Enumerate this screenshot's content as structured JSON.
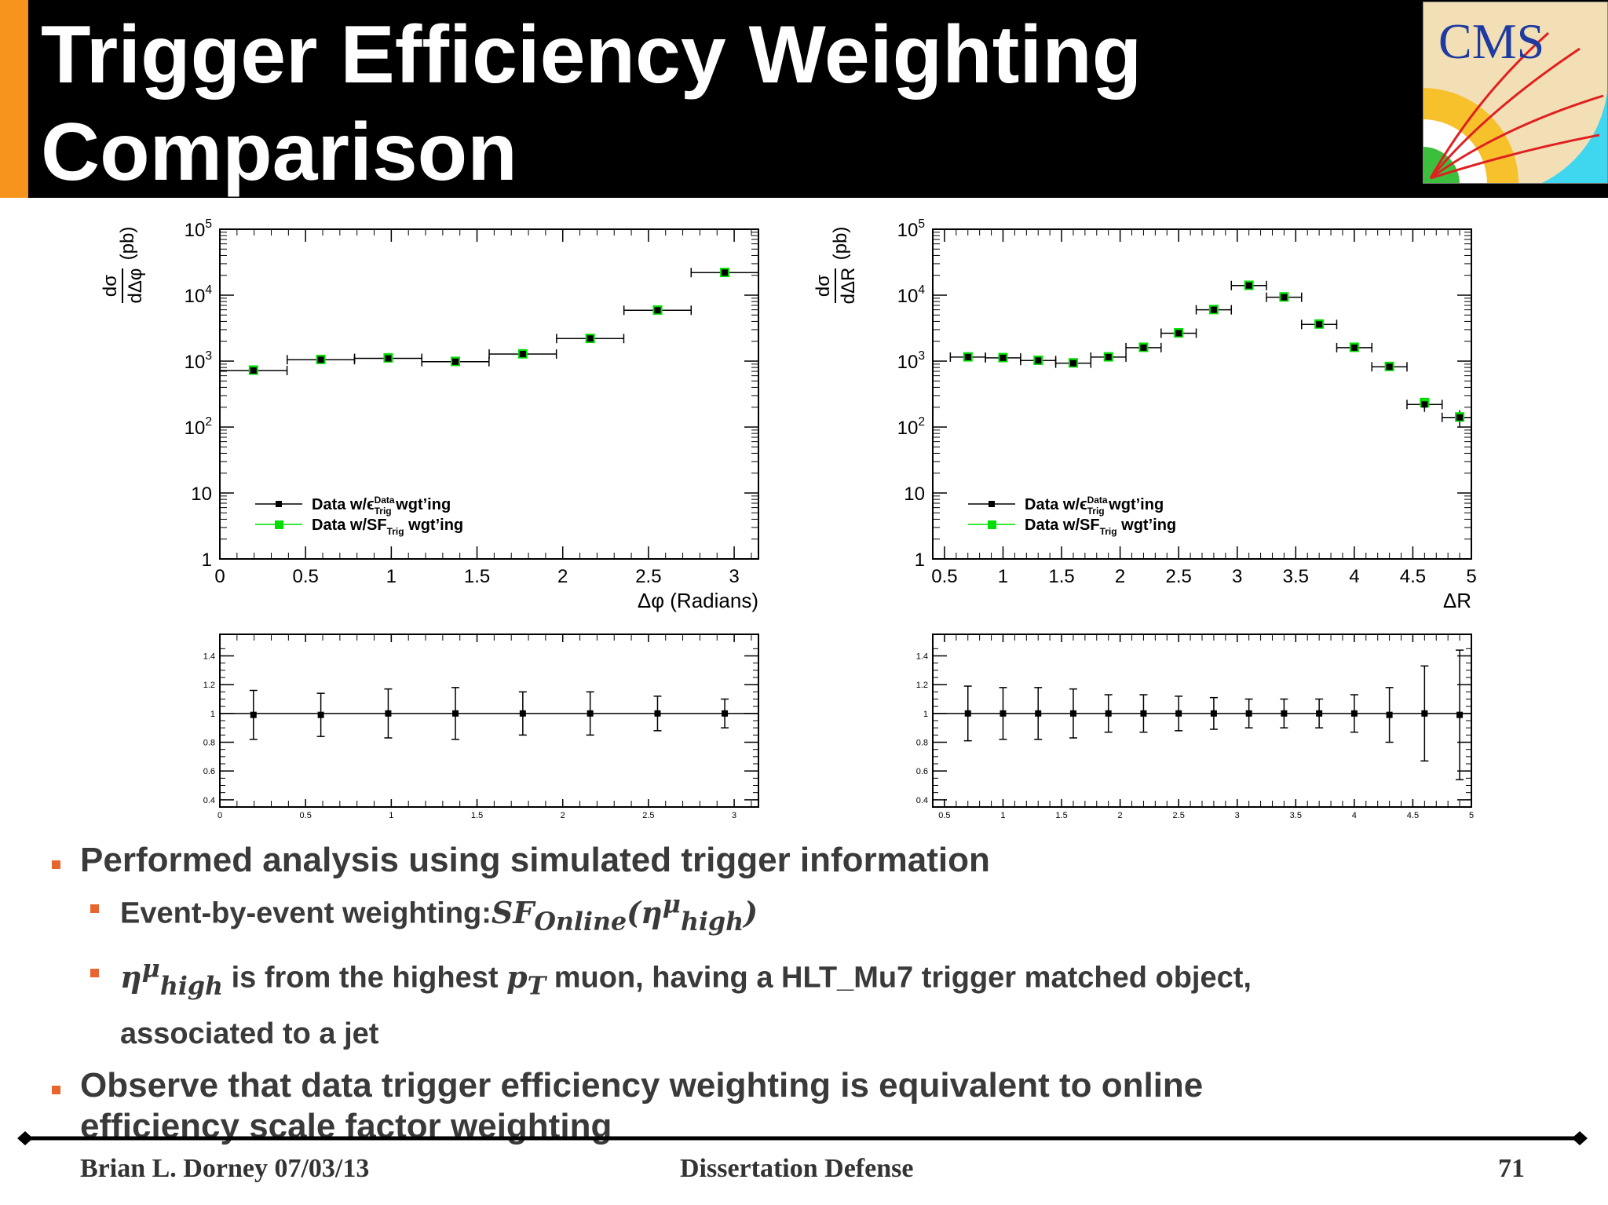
{
  "slide": {
    "title_line1": "Trigger Efficiency Weighting",
    "title_line2": "Comparison",
    "logo_text": "CMS",
    "colors": {
      "header_bg": "#000000",
      "accent": "#f7941d",
      "bullet": "#e8652f",
      "data_black": "#000000",
      "sf_green": "#00dd00"
    }
  },
  "chart_data": [
    {
      "type": "scatter",
      "id": "dphi-xsec",
      "xlabel": "Δφ (Radians)",
      "ylabel_num": "dσ",
      "ylabel_den": "dΔφ",
      "ylabel_unit": "(pb)",
      "y_scale": "log",
      "xlim": [
        0,
        3.14159
      ],
      "ylim": [
        1,
        100000
      ],
      "x_ticks": [
        "0",
        "0.5",
        "1",
        "1.5",
        "2",
        "2.5",
        "3"
      ],
      "y_ticks": [
        "1",
        "10",
        "10^2",
        "10^3",
        "10^4",
        "10^5"
      ],
      "legend_position": "lower-left",
      "series": [
        {
          "name": "Data w/ε_Trig^Data wgt'ing",
          "color": "#000000",
          "x": [
            0.196,
            0.589,
            0.982,
            1.374,
            1.767,
            2.16,
            2.553,
            2.945
          ],
          "x_err": [
            0.196,
            0.196,
            0.196,
            0.196,
            0.196,
            0.196,
            0.196,
            0.196
          ],
          "y": [
            720,
            1050,
            1100,
            980,
            1280,
            2200,
            5900,
            22000
          ]
        },
        {
          "name": "Data w/SF_Trig wgt'ing",
          "color": "#00dd00",
          "x": [
            0.196,
            0.589,
            0.982,
            1.374,
            1.767,
            2.16,
            2.553,
            2.945
          ],
          "y": [
            730,
            1060,
            1120,
            990,
            1290,
            2210,
            5950,
            22100
          ]
        }
      ]
    },
    {
      "type": "scatter",
      "id": "dphi-ratio",
      "y_scale": "linear",
      "xlim": [
        0,
        3.14159
      ],
      "ylim": [
        0.35,
        1.55
      ],
      "x_ticks": [
        "0",
        "0.5",
        "1",
        "1.5",
        "2",
        "2.5",
        "3"
      ],
      "y_ticks": [
        "0.4",
        "0.6",
        "0.8",
        "1",
        "1.2",
        "1.4"
      ],
      "x": [
        0.196,
        0.589,
        0.982,
        1.374,
        1.767,
        2.16,
        2.553,
        2.945
      ],
      "y": [
        0.99,
        0.99,
        1.0,
        1.0,
        1.0,
        1.0,
        1.0,
        1.0
      ],
      "y_err": [
        0.17,
        0.15,
        0.17,
        0.18,
        0.15,
        0.15,
        0.12,
        0.1
      ],
      "reference_line": 1
    },
    {
      "type": "scatter",
      "id": "dr-xsec",
      "xlabel": "ΔR",
      "ylabel_num": "dσ",
      "ylabel_den": "dΔR",
      "ylabel_unit": "(pb)",
      "y_scale": "log",
      "xlim": [
        0.4,
        5
      ],
      "ylim": [
        1,
        100000
      ],
      "x_ticks": [
        "0.5",
        "1",
        "1.5",
        "2",
        "2.5",
        "3",
        "3.5",
        "4",
        "4.5",
        "5"
      ],
      "y_ticks": [
        "1",
        "10",
        "10^2",
        "10^3",
        "10^4",
        "10^5"
      ],
      "legend_position": "lower-left",
      "series": [
        {
          "name": "Data w/ε_Trig^Data wgt'ing",
          "color": "#000000",
          "x": [
            0.7,
            1.0,
            1.3,
            1.6,
            1.9,
            2.2,
            2.5,
            2.8,
            3.1,
            3.4,
            3.7,
            4.0,
            4.3,
            4.6,
            4.9
          ],
          "x_err": [
            0.15,
            0.15,
            0.15,
            0.15,
            0.15,
            0.15,
            0.15,
            0.15,
            0.15,
            0.15,
            0.15,
            0.15,
            0.15,
            0.15,
            0.15
          ],
          "y": [
            1150,
            1120,
            1020,
            930,
            1150,
            1600,
            2650,
            6000,
            14000,
            9300,
            3600,
            1600,
            820,
            220,
            140
          ],
          "y_err": [
            0,
            0,
            0,
            0,
            0,
            0,
            0,
            0,
            0,
            0,
            0,
            0,
            0,
            50,
            40
          ]
        },
        {
          "name": "Data w/SF_Trig wgt'ing",
          "color": "#00dd00",
          "x": [
            0.7,
            1.0,
            1.3,
            1.6,
            1.9,
            2.2,
            2.5,
            2.8,
            3.1,
            3.4,
            3.7,
            4.0,
            4.3,
            4.6,
            4.9
          ],
          "y": [
            1160,
            1130,
            1030,
            940,
            1160,
            1620,
            2680,
            6050,
            14100,
            9400,
            3650,
            1620,
            830,
            235,
            142
          ]
        }
      ]
    },
    {
      "type": "scatter",
      "id": "dr-ratio",
      "y_scale": "linear",
      "xlim": [
        0.4,
        5
      ],
      "ylim": [
        0.35,
        1.55
      ],
      "x_ticks": [
        "0.5",
        "1",
        "1.5",
        "2",
        "2.5",
        "3",
        "3.5",
        "4",
        "4.5",
        "5"
      ],
      "y_ticks": [
        "0.4",
        "0.6",
        "0.8",
        "1",
        "1.2",
        "1.4"
      ],
      "x": [
        0.7,
        1.0,
        1.3,
        1.6,
        1.9,
        2.2,
        2.5,
        2.8,
        3.1,
        3.4,
        3.7,
        4.0,
        4.3,
        4.6,
        4.9
      ],
      "y": [
        1.0,
        1.0,
        1.0,
        1.0,
        1.0,
        1.0,
        1.0,
        1.0,
        1.0,
        1.0,
        1.0,
        1.0,
        0.99,
        1.0,
        0.99
      ],
      "y_err": [
        0.19,
        0.18,
        0.18,
        0.17,
        0.13,
        0.13,
        0.12,
        0.11,
        0.1,
        0.1,
        0.1,
        0.13,
        0.19,
        0.33,
        0.45
      ],
      "reference_line": 1
    }
  ],
  "bullets": {
    "b1": "Performed analysis using simulated trigger information",
    "b2_prefix": "Event-by-event weighting:",
    "b2_sf": "SF",
    "b2_sub": "Online",
    "b2_eta": "η",
    "b2_sup": "μ",
    "b2_sub2": "high",
    "b3_eta": "η",
    "b3_sup": "μ",
    "b3_sub": "high",
    "b3_mid": " is from the highest ",
    "b3_p": "p",
    "b3_psub": "T",
    "b3_rest": " muon, having a HLT_Mu7 trigger matched object,",
    "b3_line2": "associated to a jet",
    "b4_line1": "Observe that data trigger efficiency weighting is equivalent to online",
    "b4_line2": "efficiency scale factor weighting"
  },
  "footer": {
    "left": "Brian L. Dorney 07/03/13",
    "center": "Dissertation Defense",
    "page": "71"
  }
}
